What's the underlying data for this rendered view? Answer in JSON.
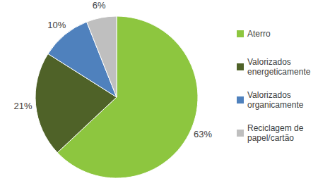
{
  "chart_data": {
    "type": "pie",
    "categories": [
      "Aterro",
      "Valorizados energeticamente",
      "Valorizados organicamente",
      "Reciclagem de papel/cartão"
    ],
    "values": [
      63,
      21,
      10,
      6
    ],
    "value_labels": [
      "63%",
      "21%",
      "10%",
      "6%"
    ],
    "colors": [
      "#8dc63f",
      "#4f6228",
      "#4f81bd",
      "#bfbfbf"
    ],
    "data_labels": true,
    "legend": "right"
  }
}
